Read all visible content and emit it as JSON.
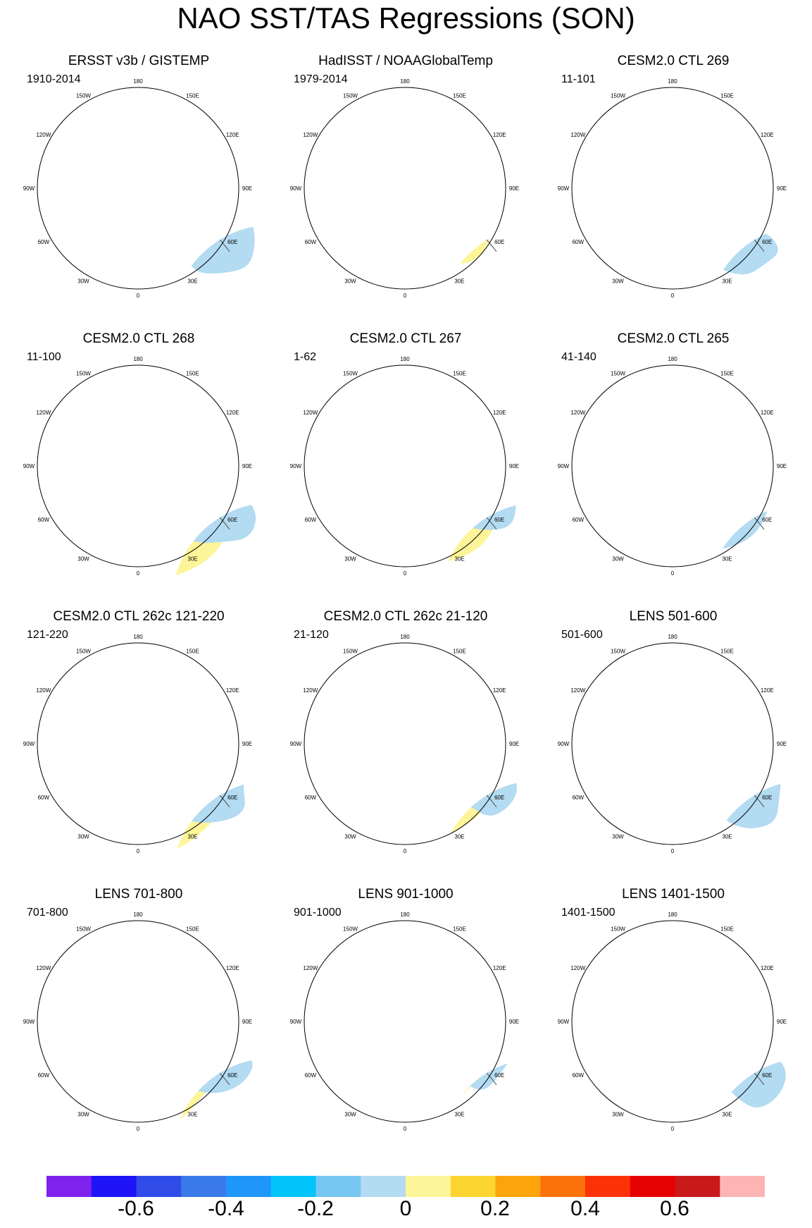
{
  "title": "NAO SST/TAS Regressions (SON)",
  "map_labels": {
    "lon_180": "180",
    "lon_150w": "150W",
    "lon_150e": "150E",
    "lon_120w": "120W",
    "lon_120e": "120E",
    "lon_90w": "90W",
    "lon_90e": "90E",
    "lon_60w": "60W",
    "lon_60e": "60E",
    "lon_30w": "30W",
    "lon_30e": "30E",
    "lon_0": "0"
  },
  "panels": [
    {
      "title": "ERSST v3b / GISTEMP",
      "period": "1910-2014"
    },
    {
      "title": "HadISST / NOAAGlobalTemp",
      "period": "1979-2014"
    },
    {
      "title": "CESM2.0 CTL 269",
      "period": "11-101"
    },
    {
      "title": "CESM2.0 CTL 268",
      "period": "11-100"
    },
    {
      "title": "CESM2.0 CTL 267",
      "period": "1-62"
    },
    {
      "title": "CESM2.0 CTL 265",
      "period": "41-140"
    },
    {
      "title": "CESM2.0 CTL 262c 121-220",
      "period": "121-220"
    },
    {
      "title": "CESM2.0 CTL 262c 21-120",
      "period": "21-120"
    },
    {
      "title": "LENS 501-600",
      "period": "501-600"
    },
    {
      "title": "LENS 701-800",
      "period": "701-800"
    },
    {
      "title": "LENS 901-1000",
      "period": "901-1000"
    },
    {
      "title": "LENS 1401-1500",
      "period": "1401-1500"
    }
  ],
  "colorbar": {
    "colors": [
      "#7f22ee",
      "#1e14f5",
      "#2f4ce8",
      "#3a7ae8",
      "#1f96fa",
      "#01c4fa",
      "#77c7f2",
      "#b3dbf2",
      "#fdf59a",
      "#fdd531",
      "#fca40b",
      "#fb720b",
      "#fa3205",
      "#e60101",
      "#c81a1a",
      "#fdb4b4"
    ],
    "labels": [
      "-0.6",
      "-0.4",
      "-0.2",
      "0",
      "0.2",
      "0.4",
      "0.6"
    ]
  }
}
